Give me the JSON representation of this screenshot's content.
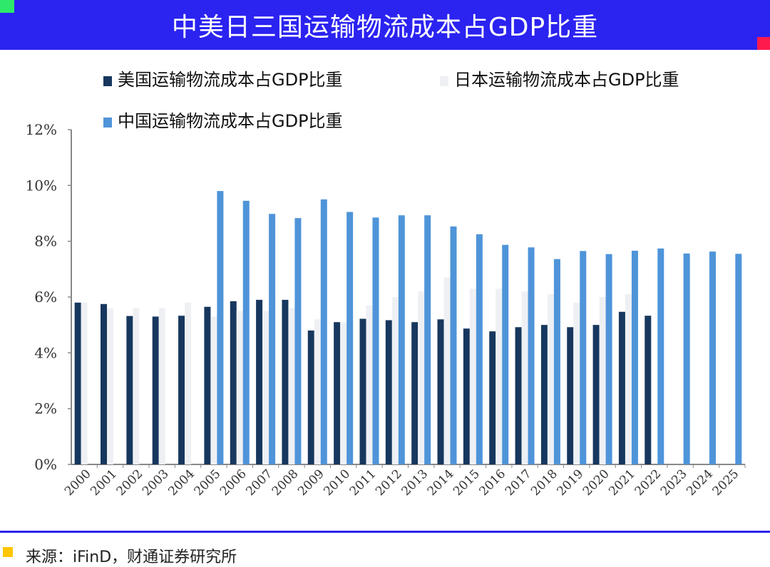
{
  "header": {
    "title": "中美日三国运输物流成本占GDP比重"
  },
  "footer": {
    "source": "来源：iFinD，财通证券研究所"
  },
  "colors": {
    "title_bar": "#2b23f0",
    "us": "#17375e",
    "japan": "#eef0f4",
    "china": "#4f94d9",
    "axis": "#888888"
  },
  "chart_data": {
    "type": "bar",
    "title": "中美日三国运输物流成本占GDP比重",
    "xlabel": "",
    "ylabel": "",
    "ylim": [
      0,
      12
    ],
    "y_ticks": [
      "0%",
      "2%",
      "4%",
      "6%",
      "8%",
      "10%",
      "12%"
    ],
    "grid": false,
    "legend_position": "top",
    "categories": [
      "2000",
      "2001",
      "2002",
      "2003",
      "2004",
      "2005",
      "2006",
      "2007",
      "2008",
      "2009",
      "2010",
      "2011",
      "2012",
      "2013",
      "2014",
      "2015",
      "2016",
      "2017",
      "2018",
      "2019",
      "2020",
      "2021",
      "2022",
      "2023",
      "2024",
      "2025"
    ],
    "series": [
      {
        "name": "美国运输物流成本占GDP比重",
        "color": "#17375e",
        "values": [
          5.8,
          5.75,
          5.32,
          5.3,
          5.33,
          5.65,
          5.85,
          5.9,
          5.9,
          4.8,
          5.1,
          5.22,
          5.17,
          5.1,
          5.2,
          4.87,
          4.77,
          4.92,
          5.0,
          4.92,
          5.0,
          5.47,
          5.33,
          null,
          null,
          null
        ]
      },
      {
        "name": "日本运输物流成本占GDP比重",
        "color": "#eef0f4",
        "values": [
          5.8,
          5.6,
          5.6,
          5.6,
          5.8,
          5.3,
          5.5,
          5.5,
          5.6,
          5.2,
          5.1,
          5.7,
          6.0,
          6.2,
          6.7,
          6.3,
          6.3,
          6.2,
          6.1,
          5.8,
          6.0,
          6.1,
          null,
          null,
          null,
          null
        ]
      },
      {
        "name": "中国运输物流成本占GDP比重",
        "color": "#4f94d9",
        "values": [
          null,
          null,
          null,
          null,
          null,
          9.8,
          9.45,
          8.98,
          8.83,
          9.5,
          9.05,
          8.85,
          8.93,
          8.93,
          8.53,
          8.25,
          7.87,
          7.78,
          7.36,
          7.65,
          7.54,
          7.66,
          7.74,
          7.56,
          7.63,
          7.55
        ]
      }
    ]
  }
}
